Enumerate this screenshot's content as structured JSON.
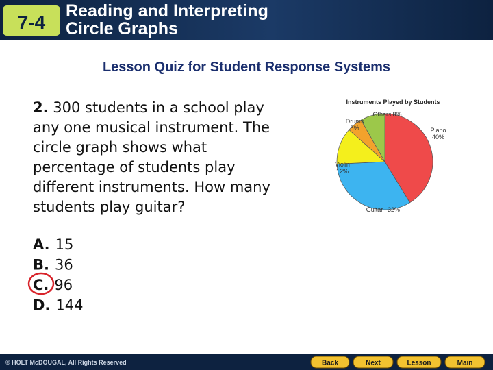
{
  "header": {
    "lesson_number": "7-4",
    "title_lines": [
      "Reading and Interpreting",
      "Circle Graphs"
    ]
  },
  "subtitle": "Lesson Quiz for Student Response Systems",
  "question": {
    "number": "2.",
    "lines": [
      "300 students in a school play",
      "any one musical instrument. The",
      "circle graph shows what",
      "percentage of students play",
      "different instruments. How many",
      "students play guitar?"
    ]
  },
  "options": [
    {
      "letter": "A.",
      "text": "15"
    },
    {
      "letter": "B.",
      "text": "36"
    },
    {
      "letter": "C.",
      "text": "96"
    },
    {
      "letter": "D.",
      "text": "144"
    }
  ],
  "chart_data": {
    "type": "pie",
    "title": "Instruments Played by Students",
    "categories": [
      "Piano",
      "Guitar",
      "Violin",
      "Drums",
      "Others"
    ],
    "values": [
      40,
      32,
      12,
      5,
      8
    ],
    "value_labels": [
      "40%",
      "32%",
      "12%",
      "5%",
      "8%"
    ],
    "colors": [
      "#ef4a4a",
      "#3db4f0",
      "#f4ef1c",
      "#f2a22c",
      "#9cc84a"
    ]
  },
  "footer": {
    "copyright": "© HOLT McDOUGAL, All Rights Reserved",
    "buttons": [
      "Back",
      "Next",
      "Lesson",
      "Main"
    ]
  }
}
